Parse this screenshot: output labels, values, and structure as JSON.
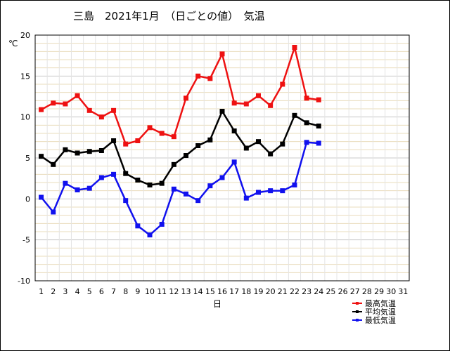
{
  "chart_data": {
    "type": "line",
    "title": "三島　2021年1月　（日ごとの値）　気温",
    "ylabel": "℃",
    "xlabel": "日",
    "ylim": [
      -10,
      20
    ],
    "xlim": [
      1,
      31
    ],
    "y_ticks": [
      20,
      15,
      10,
      5,
      0,
      -5,
      -10
    ],
    "x_ticks": [
      1,
      2,
      3,
      4,
      5,
      6,
      7,
      8,
      9,
      10,
      11,
      12,
      13,
      14,
      15,
      16,
      17,
      18,
      19,
      20,
      21,
      22,
      23,
      24,
      25,
      26,
      27,
      28,
      29,
      30,
      31
    ],
    "grid": true,
    "legend_position": "bottom-right",
    "x": [
      1,
      2,
      3,
      4,
      5,
      6,
      7,
      8,
      9,
      10,
      11,
      12,
      13,
      14,
      15,
      16,
      17,
      18,
      19,
      20,
      21,
      22,
      23,
      24
    ],
    "series": [
      {
        "name": "最高気温",
        "color": "#ee1111",
        "values": [
          10.9,
          11.7,
          11.6,
          12.6,
          10.8,
          10.0,
          10.8,
          6.7,
          7.1,
          8.7,
          8.0,
          7.6,
          12.3,
          15.0,
          14.7,
          17.7,
          11.7,
          11.6,
          12.6,
          11.4,
          14.0,
          18.5,
          12.3,
          12.1
        ]
      },
      {
        "name": "平均気温",
        "color": "#000000",
        "values": [
          5.2,
          4.2,
          6.0,
          5.6,
          5.8,
          5.9,
          7.1,
          3.1,
          2.3,
          1.7,
          1.9,
          4.2,
          5.3,
          6.5,
          7.2,
          10.7,
          8.3,
          6.2,
          7.0,
          5.5,
          6.7,
          10.2,
          9.3,
          8.9
        ]
      },
      {
        "name": "最低気温",
        "color": "#1111ee",
        "values": [
          0.2,
          -1.6,
          1.9,
          1.1,
          1.3,
          2.6,
          3.0,
          -0.2,
          -3.3,
          -4.4,
          -3.1,
          1.2,
          0.6,
          -0.2,
          1.6,
          2.6,
          4.5,
          0.1,
          0.8,
          1.0,
          1.0,
          1.7,
          6.9,
          6.8
        ]
      }
    ]
  }
}
